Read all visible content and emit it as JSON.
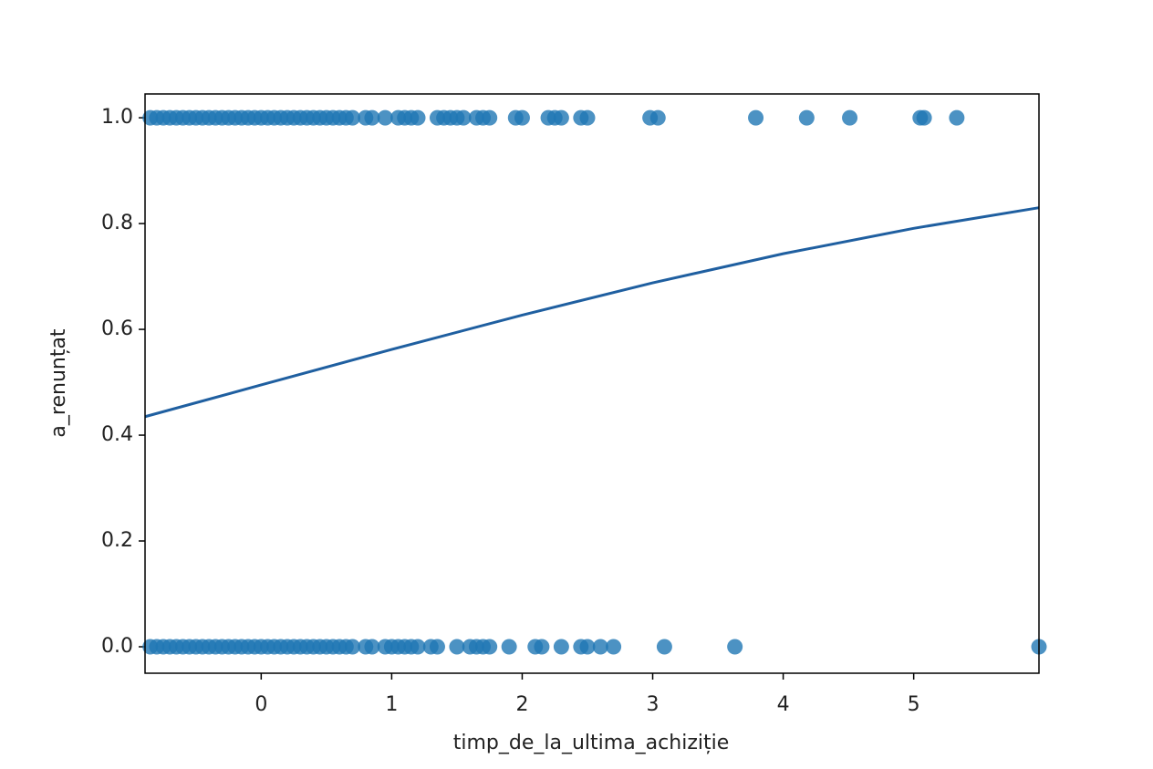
{
  "chart_data": {
    "type": "scatter",
    "xlabel": "timp_de_la_ultima_achiziție",
    "ylabel": "a_renunțat",
    "xlim": [
      -0.89,
      5.96
    ],
    "ylim": [
      -0.05,
      1.045
    ],
    "xticks": [
      0,
      1,
      2,
      3,
      4,
      5
    ],
    "yticks": [
      {
        "value": 0,
        "label": "0.0"
      },
      {
        "value": 0.2,
        "label": "0.2"
      },
      {
        "value": 0.4,
        "label": "0.4"
      },
      {
        "value": 0.6,
        "label": "0.6"
      },
      {
        "value": 0.8,
        "label": "0.8"
      },
      {
        "value": 1,
        "label": "1.0"
      }
    ],
    "series": [
      {
        "color": "#1f77b4",
        "x": [
          -0.85,
          -0.8,
          -0.75,
          -0.7,
          -0.65,
          -0.6,
          -0.55,
          -0.5,
          -0.45,
          -0.4,
          -0.35,
          -0.3,
          -0.25,
          -0.2,
          -0.15,
          -0.1,
          -0.05,
          0,
          0.05,
          0.1,
          0.15,
          0.2,
          0.25,
          0.3,
          0.35,
          0.4,
          0.45,
          0.5,
          0.55,
          0.6,
          0.65,
          0.7,
          0.8,
          0.85,
          0.95,
          1.05,
          1.1,
          1.15,
          1.2,
          1.35,
          1.4,
          1.45,
          1.5,
          1.55,
          1.65,
          1.7,
          1.75,
          1.95,
          2.0,
          2.2,
          2.25,
          2.3,
          2.45,
          2.5,
          2.98,
          3.04,
          3.79,
          4.18,
          4.51,
          5.05,
          5.08,
          5.33
        ],
        "values": [
          1,
          1,
          1,
          1,
          1,
          1,
          1,
          1,
          1,
          1,
          1,
          1,
          1,
          1,
          1,
          1,
          1,
          1,
          1,
          1,
          1,
          1,
          1,
          1,
          1,
          1,
          1,
          1,
          1,
          1,
          1,
          1,
          1,
          1,
          1,
          1,
          1,
          1,
          1,
          1,
          1,
          1,
          1,
          1,
          1,
          1,
          1,
          1,
          1,
          1,
          1,
          1,
          1,
          1,
          1,
          1,
          1,
          1,
          1,
          1,
          1,
          1
        ]
      },
      {
        "color": "#1f77b4",
        "x": [
          -0.85,
          -0.8,
          -0.75,
          -0.7,
          -0.65,
          -0.6,
          -0.55,
          -0.5,
          -0.45,
          -0.4,
          -0.35,
          -0.3,
          -0.25,
          -0.2,
          -0.15,
          -0.1,
          -0.05,
          0,
          0.05,
          0.1,
          0.15,
          0.2,
          0.25,
          0.3,
          0.35,
          0.4,
          0.45,
          0.5,
          0.55,
          0.6,
          0.65,
          0.7,
          0.8,
          0.85,
          0.95,
          1.0,
          1.05,
          1.1,
          1.15,
          1.2,
          1.3,
          1.35,
          1.5,
          1.6,
          1.65,
          1.7,
          1.75,
          1.9,
          2.1,
          2.15,
          2.3,
          2.45,
          2.5,
          2.6,
          2.7,
          3.09,
          3.63,
          5.96
        ],
        "values": [
          0,
          0,
          0,
          0,
          0,
          0,
          0,
          0,
          0,
          0,
          0,
          0,
          0,
          0,
          0,
          0,
          0,
          0,
          0,
          0,
          0,
          0,
          0,
          0,
          0,
          0,
          0,
          0,
          0,
          0,
          0,
          0,
          0,
          0,
          0,
          0,
          0,
          0,
          0,
          0,
          0,
          0,
          0,
          0,
          0,
          0,
          0,
          0,
          0,
          0,
          0,
          0,
          0,
          0,
          0,
          0,
          0,
          0
        ]
      }
    ],
    "fit": {
      "color": "#1f5fa0",
      "x": [
        -0.89,
        0,
        1,
        2,
        3,
        4,
        5,
        5.96
      ],
      "values": [
        0.435,
        0.495,
        0.562,
        0.627,
        0.688,
        0.743,
        0.791,
        0.83
      ]
    }
  }
}
